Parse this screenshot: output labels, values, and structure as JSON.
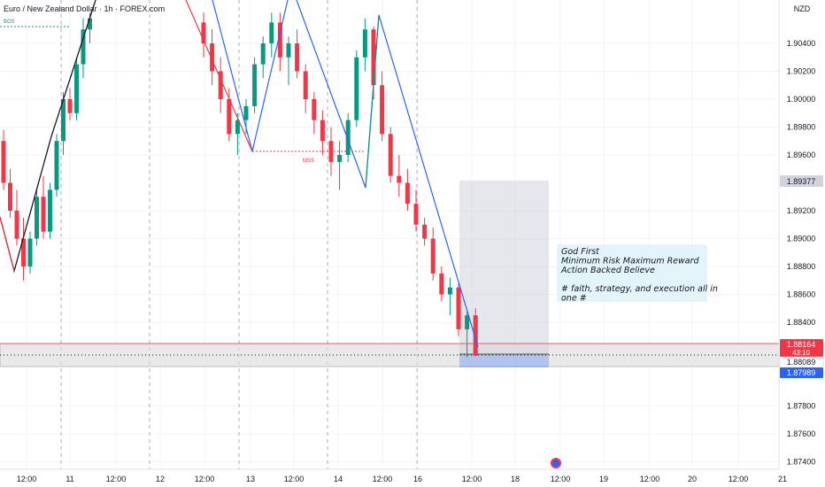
{
  "header": {
    "symbol_title": "Euro / New Zealand Dollar · 1h · FOREX.com",
    "currency": "NZD"
  },
  "price_axis": {
    "ticks": [
      "1.90400",
      "1.90200",
      "1.90000",
      "1.89800",
      "1.89600",
      "1.89200",
      "1.89000",
      "1.88800",
      "1.88600",
      "1.88400",
      "1.87800",
      "1.87600",
      "1.87400"
    ]
  },
  "price_labels": {
    "target": "1.89377",
    "last_price": "1.88164",
    "countdown": "43:10",
    "mid": "1.88089",
    "stop": "1.87989"
  },
  "time_axis": {
    "ticks": [
      "12:00",
      "11",
      "12:00",
      "12",
      "12:00",
      "13",
      "12:00",
      "14",
      "12:00",
      "16",
      "12:00",
      "18",
      "12:00",
      "19",
      "12:00",
      "20",
      "12:00",
      "21"
    ]
  },
  "annotations": {
    "bos": "BOS",
    "mss": "MSS"
  },
  "note": {
    "lines": [
      "God First",
      "Minimum Risk Maximum Reward",
      "Action Backed Believe",
      "",
      "# faith, strategy, and execution all in",
      "one #"
    ]
  },
  "colors": {
    "up": "#089981",
    "down": "#f23645",
    "blue": "#2962ff",
    "red_line": "#f23645",
    "grid": "#f0f3fa"
  },
  "chart_data": {
    "type": "candlestick",
    "title": "Euro / New Zealand Dollar · 1h · FOREX.com",
    "y_unit": "NZD",
    "ylim": [
      1.873,
      1.906
    ],
    "price_ticks": [
      1.904,
      1.902,
      1.9,
      1.898,
      1.896,
      1.892,
      1.89,
      1.888,
      1.886,
      1.884,
      1.878,
      1.876,
      1.874
    ],
    "x_ticks": [
      "12:00",
      "11",
      "12:00",
      "12",
      "12:00",
      "13",
      "12:00",
      "14",
      "12:00",
      "16",
      "12:00",
      "18",
      "12:00",
      "19",
      "12:00",
      "20",
      "12:00",
      "21"
    ],
    "candles_ohlc": [
      [
        1.897,
        1.8978,
        1.8935,
        1.894
      ],
      [
        1.894,
        1.895,
        1.8915,
        1.892
      ],
      [
        1.892,
        1.8935,
        1.8895,
        1.89
      ],
      [
        1.89,
        1.8915,
        1.887,
        1.888
      ],
      [
        1.888,
        1.8905,
        1.8875,
        1.89
      ],
      [
        1.89,
        1.8935,
        1.8895,
        1.893
      ],
      [
        1.893,
        1.8945,
        1.89,
        1.8905
      ],
      [
        1.8905,
        1.894,
        1.89,
        1.8935
      ],
      [
        1.8935,
        1.8975,
        1.893,
        1.897
      ],
      [
        1.897,
        1.9005,
        1.896,
        1.9
      ],
      [
        1.9,
        1.9008,
        1.8985,
        1.899
      ],
      [
        1.899,
        1.903,
        1.8985,
        1.9025
      ],
      [
        1.9025,
        1.9058,
        1.9015,
        1.905
      ],
      [
        1.905,
        1.9062,
        1.904,
        1.9058
      ],
      [
        1.9055,
        1.9062,
        1.903,
        1.904
      ],
      [
        1.904,
        1.905,
        1.901,
        1.902
      ],
      [
        1.902,
        1.903,
        1.899,
        1.9
      ],
      [
        1.9,
        1.9008,
        1.897,
        1.8975
      ],
      [
        1.8975,
        1.899,
        1.896,
        1.8985
      ],
      [
        1.8985,
        1.9,
        1.8975,
        1.8995
      ],
      [
        1.8995,
        1.903,
        1.899,
        1.9025
      ],
      [
        1.9025,
        1.9045,
        1.9015,
        1.904
      ],
      [
        1.904,
        1.9062,
        1.903,
        1.9055
      ],
      [
        1.9055,
        1.9062,
        1.902,
        1.903
      ],
      [
        1.903,
        1.9045,
        1.901,
        1.904
      ],
      [
        1.904,
        1.905,
        1.9015,
        1.902
      ],
      [
        1.902,
        1.9025,
        1.899,
        1.9
      ],
      [
        1.9,
        1.9005,
        1.8975,
        1.8985
      ],
      [
        1.8985,
        1.8992,
        1.896,
        1.897
      ],
      [
        1.897,
        1.898,
        1.8945,
        1.8955
      ],
      [
        1.8955,
        1.897,
        1.8935,
        1.896
      ],
      [
        1.896,
        1.899,
        1.8955,
        1.8985
      ],
      [
        1.8985,
        1.9035,
        1.898,
        1.903
      ],
      [
        1.903,
        1.9058,
        1.902,
        1.905
      ],
      [
        1.905,
        1.9052,
        1.9,
        1.901
      ],
      [
        1.901,
        1.902,
        1.897,
        1.8975
      ],
      [
        1.8975,
        1.898,
        1.894,
        1.8945
      ],
      [
        1.8945,
        1.896,
        1.893,
        1.894
      ],
      [
        1.894,
        1.895,
        1.892,
        1.8925
      ],
      [
        1.8925,
        1.8935,
        1.8905,
        1.891
      ],
      [
        1.891,
        1.8915,
        1.8895,
        1.89
      ],
      [
        1.89,
        1.8908,
        1.887,
        1.8875
      ],
      [
        1.8875,
        1.888,
        1.8855,
        1.886
      ],
      [
        1.886,
        1.8872,
        1.8845,
        1.8865
      ],
      [
        1.8865,
        1.8868,
        1.883,
        1.8835
      ],
      [
        1.8835,
        1.8848,
        1.8815,
        1.8845
      ],
      [
        1.8845,
        1.885,
        1.8816,
        1.8816
      ]
    ],
    "target_level": 1.89377,
    "last_price": 1.88164,
    "entry_level": 1.88089,
    "stop_level": 1.87989
  }
}
